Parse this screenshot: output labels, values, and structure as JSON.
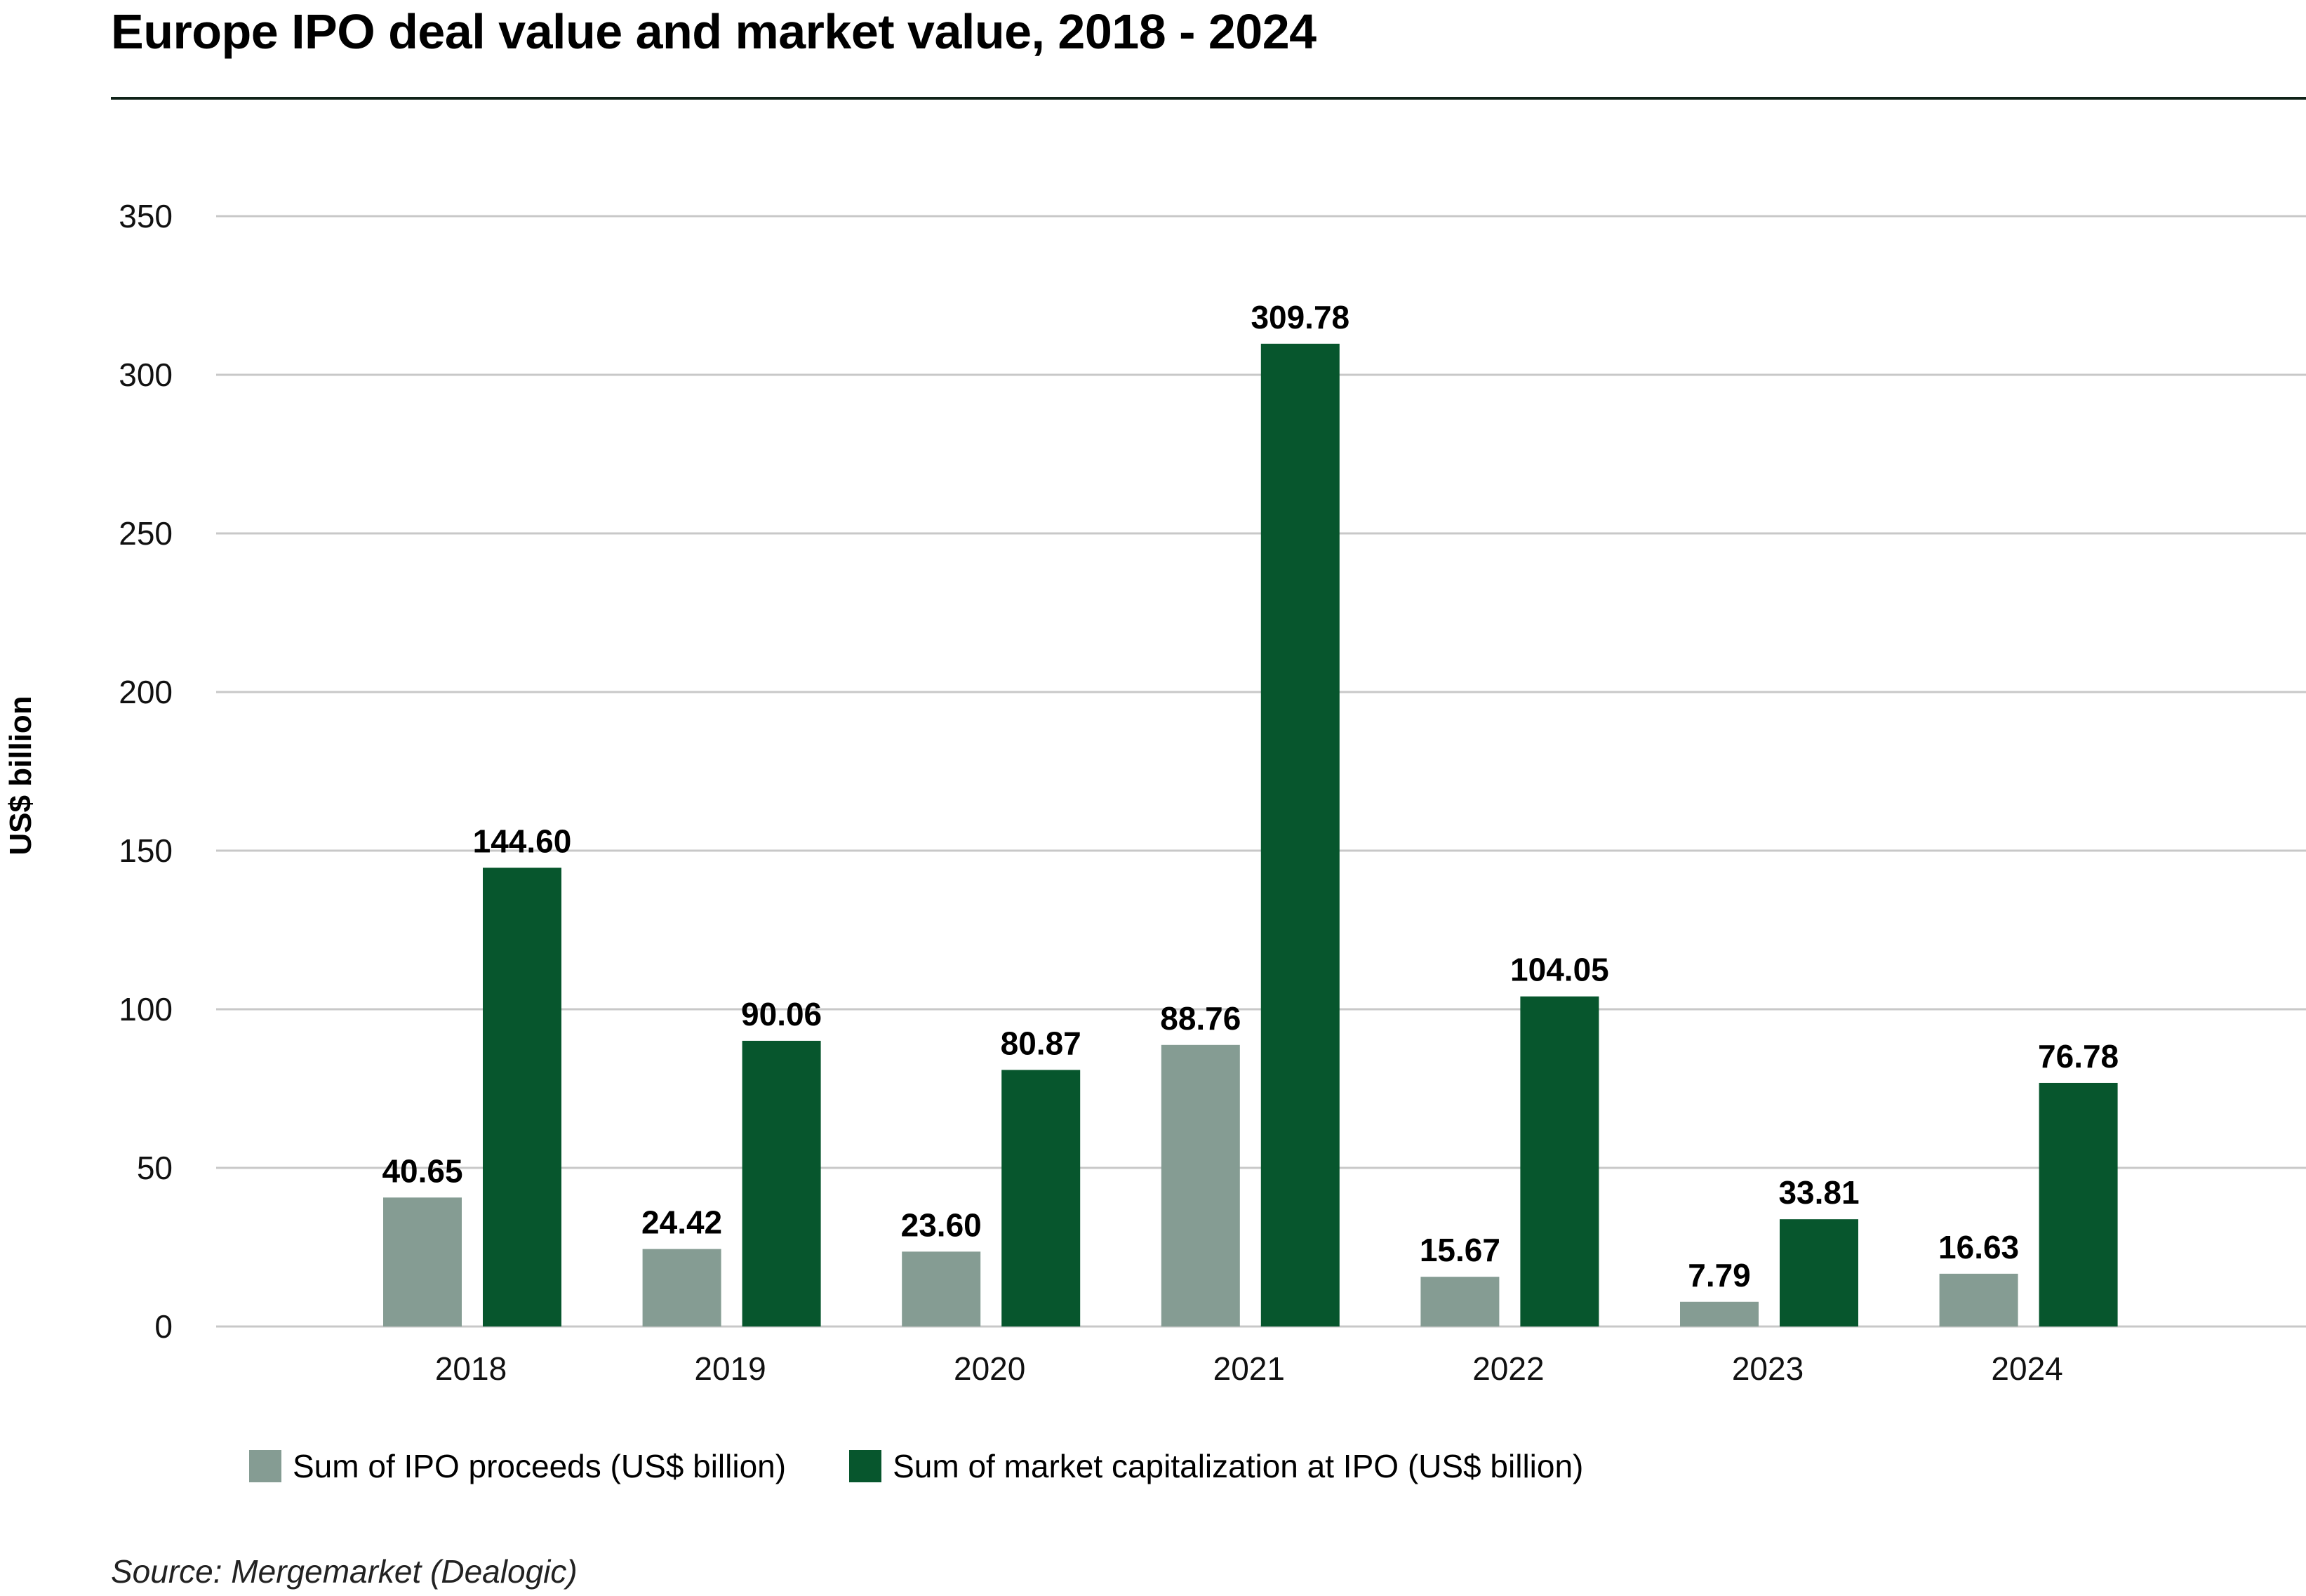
{
  "title": "Europe IPO deal value and market value, 2018 - 2024",
  "source": "Source: Mergemarket (Dealogic)",
  "colors": {
    "proceeds": "#859C93",
    "market_cap": "#07562D",
    "grid": "#C8C8C8",
    "title_rule": "#0F2218"
  },
  "chart_data": {
    "type": "bar",
    "title": "Europe IPO deal value and market value, 2018 - 2024",
    "xlabel": "",
    "ylabel": "US$ billion",
    "ylim": [
      0,
      350
    ],
    "yticks": [
      0,
      50,
      100,
      150,
      200,
      250,
      300,
      350
    ],
    "grid": true,
    "legend_position": "bottom-left",
    "categories": [
      "2018",
      "2019",
      "2020",
      "2021",
      "2022",
      "2023",
      "2024"
    ],
    "series": [
      {
        "name": "Sum of IPO proceeds (US$ billion)",
        "color": "#859C93",
        "values": [
          40.65,
          24.42,
          23.6,
          88.76,
          15.67,
          7.79,
          16.63
        ],
        "labels": [
          "40.65",
          "24.42",
          "23.60",
          "88.76",
          "15.67",
          "7.79",
          "16.63"
        ]
      },
      {
        "name": "Sum of market capitalization at IPO (US$ billion)",
        "color": "#07562D",
        "values": [
          144.6,
          90.06,
          80.87,
          309.78,
          104.05,
          33.81,
          76.78
        ],
        "labels": [
          "144.60",
          "90.06",
          "80.87",
          "309.78",
          "104.05",
          "33.81",
          "76.78"
        ]
      }
    ]
  }
}
